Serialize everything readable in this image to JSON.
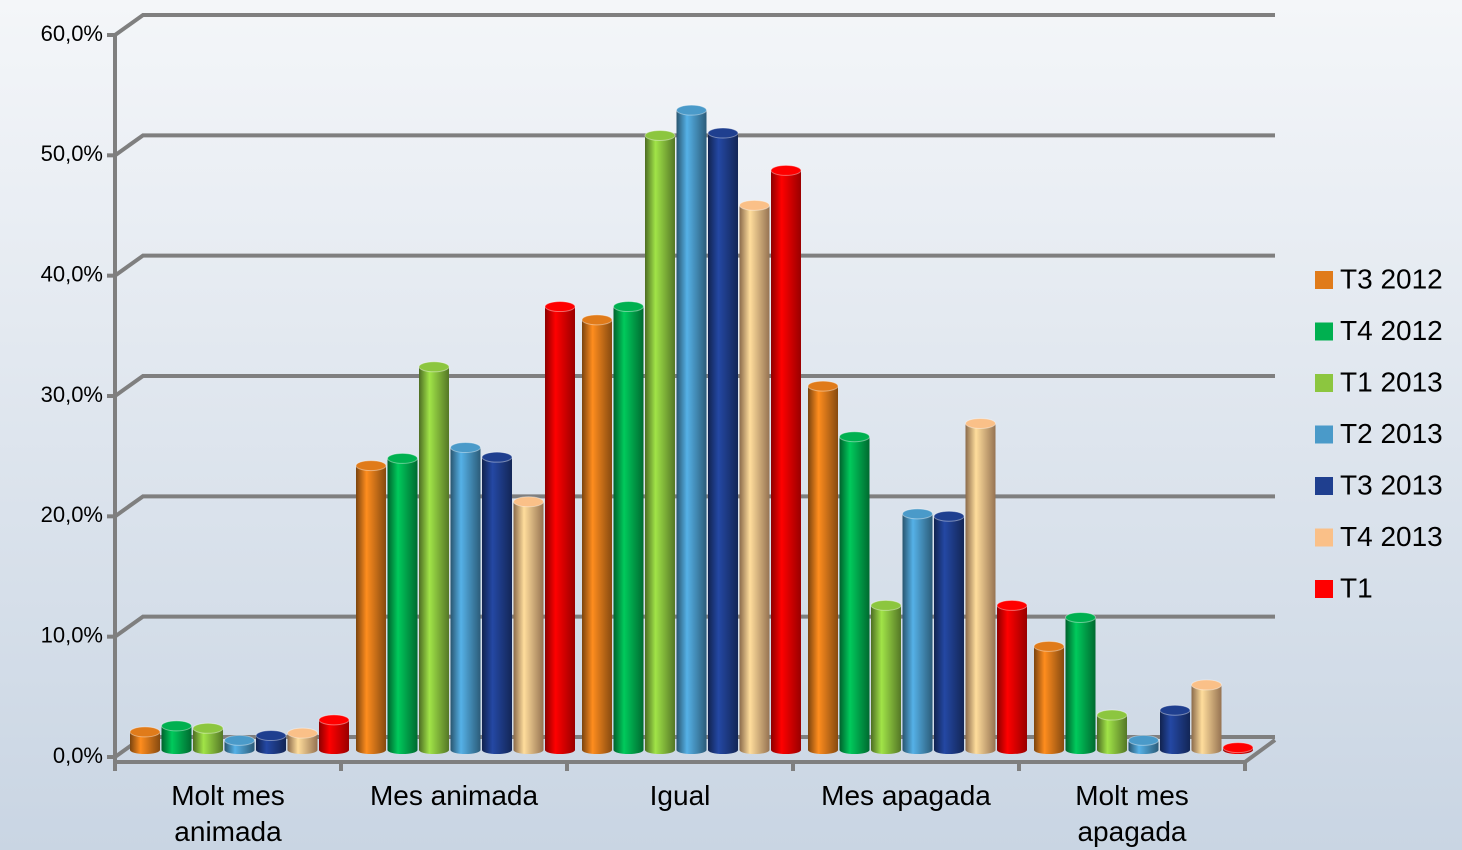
{
  "chart_data": {
    "type": "bar3d",
    "categories": [
      "Molt mes animada",
      "Mes animada",
      "Igual",
      "Mes apagada",
      "Molt mes apagada"
    ],
    "series": [
      {
        "name": "T3 2012",
        "color": "#e07b1a",
        "values": [
          1.5,
          23.6,
          35.7,
          30.2,
          8.6
        ]
      },
      {
        "name": "T4 2012",
        "color": "#00b050",
        "values": [
          2.0,
          24.2,
          36.8,
          26.0,
          11.0
        ]
      },
      {
        "name": "T1 2013",
        "color": "#8cc63f",
        "values": [
          1.8,
          31.8,
          51.0,
          12.0,
          2.9
        ]
      },
      {
        "name": "T2 2013",
        "color": "#4a9ac9",
        "values": [
          0.8,
          25.1,
          53.1,
          19.6,
          0.8
        ]
      },
      {
        "name": "T3 2013",
        "color": "#1f3f8f",
        "values": [
          1.2,
          24.3,
          51.2,
          19.4,
          3.3
        ]
      },
      {
        "name": "T4 2013",
        "color": "#fac088",
        "values": [
          1.4,
          20.6,
          45.2,
          27.1,
          5.4
        ]
      },
      {
        "name": "T1",
        "color": "#ff0000",
        "values": [
          2.5,
          36.8,
          48.1,
          12.0,
          0.2
        ]
      }
    ],
    "ylim": [
      0,
      60
    ],
    "yticks": [
      {
        "value": 0,
        "label": "0,0%"
      },
      {
        "value": 10,
        "label": "10,0%"
      },
      {
        "value": 20,
        "label": "20,0%"
      },
      {
        "value": 30,
        "label": "30,0%"
      },
      {
        "value": 40,
        "label": "40,0%"
      },
      {
        "value": 50,
        "label": "50,0%"
      },
      {
        "value": 60,
        "label": "60,0%"
      }
    ],
    "grid": true,
    "legend": "right"
  }
}
